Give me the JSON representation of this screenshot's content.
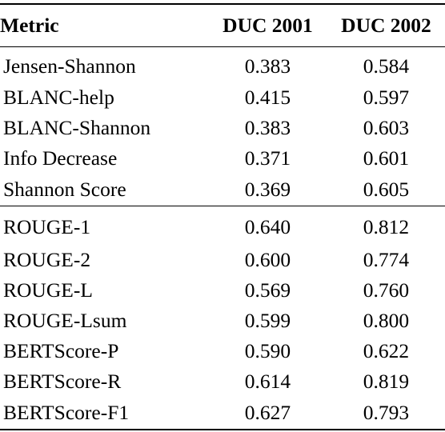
{
  "header": {
    "metric": "Metric",
    "col1": "DUC 2001",
    "col2": "DUC 2002"
  },
  "group_a": [
    {
      "metric": "Jensen-Shannon",
      "duc2001": "0.383",
      "duc2002": "0.584"
    },
    {
      "metric": "BLANC-help",
      "duc2001": "0.415",
      "duc2002": "0.597"
    },
    {
      "metric": "BLANC-Shannon",
      "duc2001": "0.383",
      "duc2002": "0.603"
    },
    {
      "metric": "Info Decrease",
      "duc2001": "0.371",
      "duc2002": "0.601"
    },
    {
      "metric": "Shannon Score",
      "duc2001": "0.369",
      "duc2002": "0.605"
    }
  ],
  "group_b": [
    {
      "metric": "ROUGE-1",
      "duc2001": "0.640",
      "duc2002": "0.812"
    },
    {
      "metric": "ROUGE-2",
      "duc2001": "0.600",
      "duc2002": "0.774"
    },
    {
      "metric": "ROUGE-L",
      "duc2001": "0.569",
      "duc2002": "0.760"
    },
    {
      "metric": "ROUGE-Lsum",
      "duc2001": "0.599",
      "duc2002": "0.800"
    },
    {
      "metric": "BERTScore-P",
      "duc2001": "0.590",
      "duc2002": "0.622"
    },
    {
      "metric": "BERTScore-R",
      "duc2001": "0.614",
      "duc2002": "0.819"
    },
    {
      "metric": "BERTScore-F1",
      "duc2001": "0.627",
      "duc2002": "0.793"
    }
  ]
}
